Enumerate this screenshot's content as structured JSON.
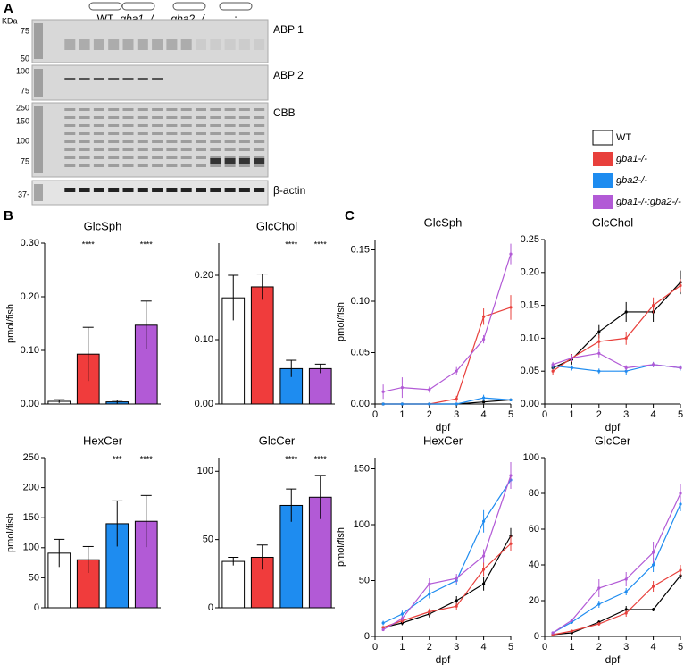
{
  "panel_labels": [
    "A",
    "B",
    "C"
  ],
  "gel": {
    "unit": "KDa",
    "lanes": [
      "-",
      "WT",
      "gba1 -/-",
      "gba2 -/-",
      "--:--"
    ],
    "blots": [
      {
        "label": "ABP 1",
        "markers": [
          "75",
          "50"
        ]
      },
      {
        "label": "ABP 2",
        "markers": [
          "100",
          "75"
        ]
      },
      {
        "label": "CBB",
        "markers": [
          "250",
          "150",
          "100",
          "75"
        ]
      },
      {
        "label": "β-actin",
        "markers": [
          "37-"
        ]
      }
    ]
  },
  "chart_data": [
    {
      "type": "bar",
      "title": "GlcSph",
      "ylabel": "pmol/fish",
      "categories": [
        null,
        null,
        null,
        null
      ],
      "values": [
        0.005,
        0.093,
        0.004,
        0.147
      ],
      "errors": [
        0.003,
        0.05,
        0.003,
        0.045
      ],
      "colors": [
        "#ffffff",
        "#f03c3c",
        "#1e8cf0",
        "#b25ad6"
      ],
      "annotations": [
        null,
        "****",
        null,
        "****"
      ],
      "ylim": [
        0,
        0.3
      ],
      "yticks": [
        {
          "value": 0,
          "label": "0.00"
        },
        {
          "value": 0.1,
          "label": "0.10"
        },
        {
          "value": 0.2,
          "label": "0.20"
        },
        {
          "value": 0.3,
          "label": "0.30"
        }
      ]
    },
    {
      "type": "bar",
      "title": "GlcChol",
      "categories": [
        null,
        null,
        null,
        null
      ],
      "values": [
        0.165,
        0.182,
        0.055,
        0.055
      ],
      "errors": [
        0.035,
        0.02,
        0.013,
        0.007
      ],
      "colors": [
        "#ffffff",
        "#f03c3c",
        "#1e8cf0",
        "#b25ad6"
      ],
      "annotations": [
        null,
        null,
        "****",
        "****"
      ],
      "ylim": [
        0,
        0.25
      ],
      "yticks": [
        {
          "value": 0,
          "label": "0.00"
        },
        {
          "value": 0.1,
          "label": "0.10"
        },
        {
          "value": 0.2,
          "label": "0.20"
        }
      ]
    },
    {
      "type": "bar",
      "title": "HexCer",
      "ylabel": "pmol/fish",
      "categories": [
        null,
        null,
        null,
        null
      ],
      "values": [
        91,
        80,
        140,
        144
      ],
      "errors": [
        23,
        22,
        38,
        43
      ],
      "colors": [
        "#ffffff",
        "#f03c3c",
        "#1e8cf0",
        "#b25ad6"
      ],
      "annotations": [
        null,
        null,
        "***",
        "****"
      ],
      "ylim": [
        0,
        250
      ],
      "yticks": [
        0,
        50,
        100,
        150,
        200,
        250
      ]
    },
    {
      "type": "bar",
      "title": "GlcCer",
      "categories": [
        null,
        null,
        null,
        null
      ],
      "values": [
        34,
        37,
        75,
        81
      ],
      "errors": [
        3,
        9,
        12,
        16
      ],
      "colors": [
        "#ffffff",
        "#f03c3c",
        "#1e8cf0",
        "#b25ad6"
      ],
      "annotations": [
        null,
        null,
        "****",
        "****"
      ],
      "ylim": [
        0,
        110
      ],
      "yticks": [
        0,
        50,
        100
      ]
    },
    {
      "type": "line",
      "title": "GlcSph",
      "ylabel": "pmol/fish",
      "xlabel": "dpf",
      "x": [
        0.3,
        1,
        2,
        3,
        4,
        5
      ],
      "xlim": [
        0,
        5
      ],
      "xticks": [
        0,
        1,
        2,
        3,
        4,
        5
      ],
      "ylim": [
        0,
        0.16
      ],
      "yticks": [
        {
          "value": 0,
          "label": "0.00"
        },
        0.05,
        {
          "value": 0.1,
          "label": "0.10"
        },
        0.15
      ],
      "series": [
        {
          "name": "WT",
          "color": "#000000",
          "values": [
            0,
            0,
            0,
            0,
            0.002,
            0.004
          ],
          "errors": [
            0,
            0,
            0,
            0,
            0.001,
            0.001
          ]
        },
        {
          "name": "gba1-/-",
          "color": "#e8403c",
          "values": [
            0,
            0,
            0,
            0.005,
            0.085,
            0.094
          ],
          "errors": [
            0,
            0,
            0,
            0.003,
            0.008,
            0.012
          ]
        },
        {
          "name": "gba2-/-",
          "color": "#1e8cf0",
          "values": [
            0,
            0,
            0,
            0,
            0.006,
            0.004
          ],
          "errors": [
            0,
            0,
            0,
            0,
            0.003,
            0.001
          ]
        },
        {
          "name": "gba1-/-:gba2-/-",
          "color": "#b25ad6",
          "values": [
            0.012,
            0.016,
            0.014,
            0.032,
            0.063,
            0.146
          ],
          "errors": [
            0.007,
            0.01,
            0.003,
            0.004,
            0.004,
            0.01
          ]
        }
      ]
    },
    {
      "type": "line",
      "title": "GlcChol",
      "xlabel": "dpf",
      "x": [
        0.3,
        1,
        2,
        3,
        4,
        5
      ],
      "xlim": [
        0,
        5
      ],
      "xticks": [
        0,
        1,
        2,
        3,
        4,
        5
      ],
      "ylim": [
        0,
        0.25
      ],
      "yticks": [
        {
          "value": 0,
          "label": "0.00"
        },
        0.05,
        {
          "value": 0.1,
          "label": "0.10"
        },
        0.15,
        {
          "value": 0.2,
          "label": "0.20"
        },
        0.25
      ],
      "series": [
        {
          "name": "WT",
          "color": "#000000",
          "values": [
            0.055,
            0.068,
            0.11,
            0.14,
            0.14,
            0.185
          ],
          "errors": [
            0.005,
            0.008,
            0.01,
            0.015,
            0.015,
            0.018
          ]
        },
        {
          "name": "gba1-/-",
          "color": "#e8403c",
          "values": [
            0.05,
            0.07,
            0.095,
            0.1,
            0.15,
            0.18
          ],
          "errors": [
            0.006,
            0.006,
            0.01,
            0.01,
            0.012,
            0.01
          ]
        },
        {
          "name": "gba2-/-",
          "color": "#1e8cf0",
          "values": [
            0.058,
            0.055,
            0.05,
            0.05,
            0.06,
            0.055
          ],
          "errors": [
            0.005,
            0.004,
            0.004,
            0.006,
            0.004,
            0.004
          ]
        },
        {
          "name": "gba1-/-:gba2-/-",
          "color": "#b25ad6",
          "values": [
            0.06,
            0.07,
            0.077,
            0.055,
            0.06,
            0.055
          ],
          "errors": [
            0.004,
            0.005,
            0.006,
            0.004,
            0.004,
            0.003
          ]
        }
      ]
    },
    {
      "type": "line",
      "title": "HexCer",
      "ylabel": "pmol/fish",
      "xlabel": "dpf",
      "x": [
        0.3,
        1,
        2,
        3,
        4,
        5
      ],
      "xlim": [
        0,
        5
      ],
      "xticks": [
        0,
        1,
        2,
        3,
        4,
        5
      ],
      "ylim": [
        0,
        160
      ],
      "yticks": [
        0,
        50,
        100,
        150
      ],
      "series": [
        {
          "name": "WT",
          "color": "#000000",
          "values": [
            8,
            12,
            20,
            32,
            47,
            90
          ],
          "errors": [
            1,
            2,
            3,
            4,
            6,
            7
          ]
        },
        {
          "name": "gba1-/-",
          "color": "#e8403c",
          "values": [
            8,
            14,
            22,
            27,
            60,
            83
          ],
          "errors": [
            1,
            2,
            3,
            3,
            6,
            7
          ]
        },
        {
          "name": "gba2-/-",
          "color": "#1e8cf0",
          "values": [
            12,
            20,
            38,
            50,
            103,
            140
          ],
          "errors": [
            2,
            3,
            4,
            4,
            10,
            8
          ]
        },
        {
          "name": "gba1-/-:gba2-/-",
          "color": "#b25ad6",
          "values": [
            6,
            16,
            47,
            52,
            72,
            144
          ],
          "errors": [
            1,
            2,
            5,
            4,
            6,
            12
          ]
        }
      ]
    },
    {
      "type": "line",
      "title": "GlcCer",
      "xlabel": "dpf",
      "x": [
        0.3,
        1,
        2,
        3,
        4,
        5
      ],
      "xlim": [
        0,
        5
      ],
      "xticks": [
        0,
        1,
        2,
        3,
        4,
        5
      ],
      "ylim": [
        0,
        100
      ],
      "yticks": [
        0,
        20,
        40,
        60,
        80,
        100
      ],
      "series": [
        {
          "name": "WT",
          "color": "#000000",
          "values": [
            1,
            2,
            8,
            15,
            15,
            34
          ],
          "errors": [
            0.5,
            0.5,
            1,
            2,
            1,
            2
          ]
        },
        {
          "name": "gba1-/-",
          "color": "#e8403c",
          "values": [
            1,
            3,
            7,
            13,
            28,
            37
          ],
          "errors": [
            0.5,
            0.5,
            1,
            2,
            3,
            3
          ]
        },
        {
          "name": "gba2-/-",
          "color": "#1e8cf0",
          "values": [
            2,
            8,
            18,
            25,
            40,
            74
          ],
          "errors": [
            0.5,
            1,
            2,
            2,
            4,
            4
          ]
        },
        {
          "name": "gba1-/-:gba2-/-",
          "color": "#b25ad6",
          "values": [
            2,
            9,
            27,
            32,
            47,
            80
          ],
          "errors": [
            0.5,
            1,
            5,
            4,
            6,
            5
          ]
        }
      ]
    }
  ]
}
